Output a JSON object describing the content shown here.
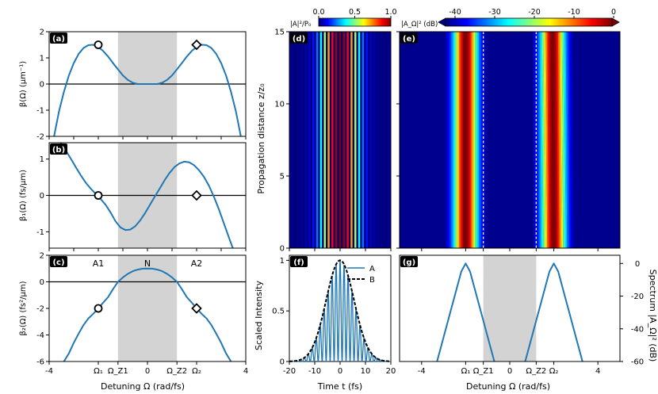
{
  "figure": {
    "x_left_label": "Detuning Ω (rad/fs)",
    "x_right_label": "Detuning Ω (rad/fs)",
    "x_time_label": "Time t (fs)",
    "y_prop_label": "Propagation distance z/z₀",
    "y_scaled_label": "Scaled Intensity",
    "y_spec_label": "Spectrum |A_Ω|² (dB)"
  },
  "colors": {
    "line": "#1f77b4",
    "shade": "#d3d3d3",
    "heatmap_bg": "#00008f",
    "panel_tag_bg": "#000000",
    "panel_tag_fg": "#ffffff"
  },
  "chart_data": [
    {
      "id": "a",
      "type": "line",
      "panel_label": "(a)",
      "ylabel": "β(Ω) (μm⁻¹)",
      "xlim": [
        -4,
        4
      ],
      "ylim": [
        -2,
        2
      ],
      "yticks": [
        -2,
        -1,
        0,
        1,
        2
      ],
      "shade_x": [
        -1.2,
        1.2
      ],
      "hline": 0,
      "series": [
        {
          "x": [
            -3.8,
            -3.6,
            -3.4,
            -3.2,
            -3.0,
            -2.8,
            -2.6,
            -2.4,
            -2.2,
            -2.0,
            -1.8,
            -1.6,
            -1.4,
            -1.2,
            -1.0,
            -0.8,
            -0.6,
            -0.4,
            -0.2,
            0.0,
            0.2,
            0.4,
            0.6,
            0.8,
            1.0,
            1.2,
            1.4,
            1.6,
            1.8,
            2.0,
            2.2,
            2.4,
            2.6,
            2.8,
            3.0,
            3.2,
            3.4,
            3.6,
            3.8
          ],
          "y": [
            -2.0,
            -1.05,
            -0.3,
            0.32,
            0.8,
            1.15,
            1.38,
            1.49,
            1.5,
            1.42,
            1.26,
            1.05,
            0.8,
            0.56,
            0.33,
            0.16,
            0.05,
            0.0,
            0.0,
            0.0,
            0.0,
            0.0,
            0.05,
            0.16,
            0.33,
            0.56,
            0.8,
            1.05,
            1.26,
            1.42,
            1.5,
            1.49,
            1.38,
            1.15,
            0.8,
            0.32,
            -0.3,
            -1.05,
            -2.0
          ]
        }
      ],
      "markers": [
        {
          "shape": "circle",
          "x": -2.0,
          "y": 1.5
        },
        {
          "shape": "diamond",
          "x": 2.0,
          "y": 1.5
        }
      ]
    },
    {
      "id": "b",
      "type": "line",
      "panel_label": "(b)",
      "ylabel": "β₁(Ω) (fs/μm)",
      "xlim": [
        -4,
        4
      ],
      "ylim": [
        -1.45,
        1.45
      ],
      "yticks": [
        -1,
        0,
        1
      ],
      "shade_x": [
        -1.2,
        1.2
      ],
      "hline": 0,
      "series": [
        {
          "x": [
            -3.7,
            -3.5,
            -3.3,
            -3.1,
            -2.9,
            -2.7,
            -2.5,
            -2.3,
            -2.1,
            -1.9,
            -1.7,
            -1.5,
            -1.3,
            -1.1,
            -0.9,
            -0.7,
            -0.5,
            -0.3,
            -0.1,
            0.1,
            0.3,
            0.5,
            0.7,
            0.9,
            1.1,
            1.3,
            1.5,
            1.7,
            1.9,
            2.1,
            2.3,
            2.5,
            2.7,
            2.9,
            3.1,
            3.3,
            3.5,
            3.7
          ],
          "y": [
            1.6,
            1.42,
            1.21,
            0.99,
            0.76,
            0.54,
            0.34,
            0.18,
            0.04,
            -0.1,
            -0.26,
            -0.47,
            -0.71,
            -0.88,
            -0.95,
            -0.94,
            -0.85,
            -0.69,
            -0.49,
            -0.26,
            -0.03,
            0.19,
            0.42,
            0.62,
            0.78,
            0.88,
            0.93,
            0.91,
            0.83,
            0.69,
            0.51,
            0.27,
            -0.03,
            -0.37,
            -0.75,
            -1.13,
            -1.5,
            -1.88
          ]
        }
      ],
      "markers": [
        {
          "shape": "circle",
          "x": -2.0,
          "y": 0.0
        },
        {
          "shape": "diamond",
          "x": 2.0,
          "y": 0.0
        }
      ]
    },
    {
      "id": "c",
      "type": "line",
      "panel_label": "(c)",
      "ylabel": "β₂(Ω) (fs²/μm)",
      "xlim": [
        -4,
        4
      ],
      "ylim": [
        -6,
        2
      ],
      "yticks": [
        -6,
        -4,
        -2,
        0,
        2
      ],
      "xticks": [
        -4,
        -2,
        -1.2,
        0,
        1.2,
        2,
        4
      ],
      "xticklabels": [
        "-4",
        "Ω₁",
        "Ω_Z1",
        "0",
        "Ω_Z2",
        "Ω₂",
        "4"
      ],
      "shade_x": [
        -1.2,
        1.2
      ],
      "hline": 0,
      "region_labels": [
        {
          "text": "A1",
          "x": -2.0
        },
        {
          "text": "N",
          "x": 0.0
        },
        {
          "text": "A2",
          "x": 2.0
        }
      ],
      "series": [
        {
          "x": [
            -3.4,
            -3.2,
            -3.0,
            -2.8,
            -2.6,
            -2.4,
            -2.2,
            -2.0,
            -1.8,
            -1.6,
            -1.4,
            -1.2,
            -1.0,
            -0.8,
            -0.6,
            -0.4,
            -0.2,
            0.0,
            0.2,
            0.4,
            0.6,
            0.8,
            1.0,
            1.2,
            1.4,
            1.6,
            1.8,
            2.0,
            2.2,
            2.4,
            2.6,
            2.8,
            3.0,
            3.2,
            3.4
          ],
          "y": [
            -6.0,
            -5.4,
            -4.6,
            -3.9,
            -3.25,
            -2.75,
            -2.4,
            -2.0,
            -1.56,
            -1.15,
            -0.55,
            0.0,
            0.33,
            0.6,
            0.8,
            0.92,
            0.99,
            1.0,
            0.99,
            0.92,
            0.8,
            0.6,
            0.33,
            0.0,
            -0.55,
            -1.15,
            -1.56,
            -2.0,
            -2.4,
            -2.75,
            -3.25,
            -3.9,
            -4.6,
            -5.4,
            -6.0
          ]
        }
      ],
      "markers": [
        {
          "shape": "circle",
          "x": -2.0,
          "y": -2.0
        },
        {
          "shape": "diamond",
          "x": 2.0,
          "y": -2.0
        }
      ]
    },
    {
      "id": "d",
      "type": "heatmap",
      "panel_label": "(d)",
      "ylim": [
        0,
        15
      ],
      "yticks": [
        0,
        5,
        10,
        15
      ],
      "colorbar_label": "|A|²/P₀",
      "colorbar_ticks": [
        "0.0",
        "0.5",
        "1.0"
      ],
      "colormap": [
        "#00007f",
        "#0000ff",
        "#007fff",
        "#00ffff",
        "#7fff7f",
        "#ffff00",
        "#ff7f00",
        "#ff0000",
        "#7f0000"
      ],
      "stripe_intensity": [
        0.0,
        0.0,
        0.01,
        0.0,
        0.02,
        0.0,
        0.04,
        0.0,
        0.08,
        0.0,
        0.14,
        0.0,
        0.24,
        0.0,
        0.38,
        0.0,
        0.55,
        0.0,
        0.72,
        0.0,
        0.87,
        0.0,
        0.97,
        0.0,
        1.0,
        0.0,
        0.97,
        0.0,
        0.87,
        0.0,
        0.72,
        0.0,
        0.55,
        0.0,
        0.38,
        0.0,
        0.24,
        0.0,
        0.14,
        0.0,
        0.08,
        0.0,
        0.04,
        0.0,
        0.02,
        0.0,
        0.01,
        0.0,
        0.0
      ]
    },
    {
      "id": "e",
      "type": "heatmap",
      "panel_label": "(e)",
      "xlim": [
        -5,
        5
      ],
      "ylim": [
        0,
        15
      ],
      "colorbar_label": "|A_Ω|² (dB)",
      "colorbar_ticks": [
        -40,
        -30,
        -20,
        -10,
        0
      ],
      "colormap": [
        "#00007f",
        "#0000ff",
        "#007fff",
        "#00ffff",
        "#7fff7f",
        "#ffff00",
        "#ff7f00",
        "#ff0000",
        "#7f0000"
      ],
      "dashed_x": [
        -1.2,
        1.2
      ],
      "bands": [
        {
          "center": -2.0,
          "width": 0.9,
          "drift": 0.0
        },
        {
          "center": 2.0,
          "width": 0.9,
          "drift": -0.05
        }
      ]
    },
    {
      "id": "f",
      "type": "line",
      "panel_label": "(f)",
      "xlim": [
        -20,
        20
      ],
      "ylim": [
        0,
        1.05
      ],
      "xticks": [
        -20,
        -10,
        0,
        10,
        20
      ],
      "yticks": [
        0.0,
        0.5,
        1.0
      ],
      "legend": [
        {
          "name": "A",
          "style": "solid"
        },
        {
          "name": "B",
          "style": "dashed"
        }
      ],
      "envelope_width": 5.5,
      "carrier_omega": 2.0
    },
    {
      "id": "g",
      "type": "line",
      "panel_label": "(g)",
      "xlim": [
        -5,
        5
      ],
      "ylim": [
        -60,
        5
      ],
      "yticks": [
        0,
        -20,
        -40,
        -60
      ],
      "xticks": [
        -4,
        -2,
        -1.2,
        0,
        1.2,
        2,
        4
      ],
      "xticklabels": [
        "-4",
        "Ω₁",
        "Ω_Z1",
        "0",
        "Ω_Z2",
        "Ω₂",
        "4"
      ],
      "shade_x": [
        -1.2,
        1.2
      ],
      "series": [
        {
          "x": [
            -3.3,
            -3.0,
            -2.7,
            -2.4,
            -2.2,
            -2.0,
            -1.8,
            -1.6,
            -1.3,
            -1.0,
            -0.7
          ],
          "y": [
            -60,
            -45,
            -30,
            -15,
            -5,
            0,
            -5,
            -15,
            -30,
            -45,
            -60
          ]
        },
        {
          "x": [
            0.7,
            1.0,
            1.3,
            1.6,
            1.8,
            2.0,
            2.2,
            2.4,
            2.7,
            3.0,
            3.3
          ],
          "y": [
            -60,
            -45,
            -30,
            -15,
            -5,
            0,
            -5,
            -15,
            -30,
            -45,
            -60
          ]
        }
      ]
    }
  ]
}
